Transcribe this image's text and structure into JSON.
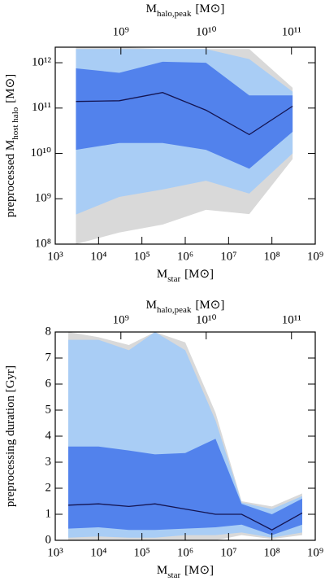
{
  "chart_data": [
    {
      "type": "band",
      "xlabel": "M",
      "xlabel_sub": "star",
      "xlabel_unit": "[M⊙]",
      "x2label": "M",
      "x2label_sub": "halo,peak",
      "x2label_unit": "[M⊙]",
      "ylabel": "preprocessed M",
      "ylabel_sub": "host halo",
      "ylabel_unit": "[M⊙]",
      "xscale": "log",
      "yscale": "log",
      "xlim": [
        1000,
        1000000000
      ],
      "xticks": [
        {
          "value": 1000,
          "label": "10³"
        },
        {
          "value": 10000,
          "label": "10⁴"
        },
        {
          "value": 100000,
          "label": "10⁵"
        },
        {
          "value": 1000000,
          "label": "10⁶"
        },
        {
          "value": 10000000,
          "label": "10⁷"
        },
        {
          "value": 100000000,
          "label": "10⁸"
        },
        {
          "value": 1000000000,
          "label": "10⁹"
        }
      ],
      "x2lim": [
        170000000,
        190000000000
      ],
      "x2ticks": [
        {
          "value": 1000000000,
          "label": "10⁹"
        },
        {
          "value": 10000000000,
          "label": "10¹⁰"
        },
        {
          "value": 100000000000,
          "label": "10¹¹"
        }
      ],
      "ylim": [
        100000000,
        2200000000000
      ],
      "yticks": [
        {
          "value": 100000000,
          "label": "10⁸"
        },
        {
          "value": 1000000000,
          "label": "10⁹"
        },
        {
          "value": 10000000000,
          "label": "10¹⁰"
        },
        {
          "value": 100000000000,
          "label": "10¹¹"
        },
        {
          "value": 1000000000000,
          "label": "10¹²"
        }
      ],
      "x": [
        3000,
        30000,
        300000,
        3000000,
        30000000,
        300000000
      ],
      "bands": [
        {
          "color": "#d9d9d9",
          "upper": [
            2200000000000,
            2200000000000,
            2000000000000,
            2000000000000,
            2000000000000,
            280000000000
          ],
          "lower": [
            100000000,
            180000000,
            270000000,
            570000000,
            460000000,
            7500000000
          ]
        },
        {
          "color": "#a9cdf5",
          "upper": [
            2000000000000,
            2000000000000,
            2000000000000,
            2000000000000,
            1200000000000,
            230000000000
          ],
          "lower": [
            450000000,
            1100000000,
            1600000000,
            2500000000,
            1300000000,
            10000000000
          ]
        },
        {
          "color": "#5282ec",
          "upper": [
            750000000000,
            600000000000,
            1050000000000,
            1000000000000,
            190000000000,
            190000000000
          ],
          "lower": [
            12000000000,
            17000000000,
            17000000000,
            12000000000,
            4600000000,
            30000000000
          ]
        }
      ],
      "median": {
        "color": "#141450",
        "values": [
          140000000000,
          145000000000,
          220000000000,
          90000000000,
          26000000000,
          110000000000
        ]
      }
    },
    {
      "type": "band",
      "xlabel": "M",
      "xlabel_sub": "star",
      "xlabel_unit": "[M⊙]",
      "x2label": "M",
      "x2label_sub": "halo,peak",
      "x2label_unit": "[M⊙]",
      "ylabel": "preprocessing duration [Gyr]",
      "xscale": "log",
      "yscale": "linear",
      "xlim": [
        1000,
        1000000000
      ],
      "xticks": [
        {
          "value": 1000,
          "label": "10³"
        },
        {
          "value": 10000,
          "label": "10⁴"
        },
        {
          "value": 100000,
          "label": "10⁵"
        },
        {
          "value": 1000000,
          "label": "10⁶"
        },
        {
          "value": 10000000,
          "label": "10⁷"
        },
        {
          "value": 100000000,
          "label": "10⁸"
        },
        {
          "value": 1000000000,
          "label": "10⁹"
        }
      ],
      "x2lim": [
        170000000,
        190000000000
      ],
      "x2ticks": [
        {
          "value": 1000000000,
          "label": "10⁹"
        },
        {
          "value": 10000000000,
          "label": "10¹⁰"
        },
        {
          "value": 100000000000,
          "label": "10¹¹"
        }
      ],
      "ylim": [
        0,
        8
      ],
      "yticks": [
        0,
        1,
        2,
        3,
        4,
        5,
        6,
        7,
        8
      ],
      "x": [
        2000,
        10000,
        50000,
        200000,
        1000000,
        5000000,
        20000000,
        100000000,
        500000000
      ],
      "bands": [
        {
          "color": "#d9d9d9",
          "upper": [
            8,
            7.8,
            7.5,
            8,
            7.6,
            4.9,
            1.5,
            1.3,
            1.8
          ],
          "lower": [
            0,
            0,
            0,
            0,
            0,
            0,
            0.2,
            0.05,
            0.2
          ]
        },
        {
          "color": "#a9cdf5",
          "upper": [
            7.7,
            7.7,
            7.3,
            8,
            7.3,
            4.6,
            1.45,
            1.2,
            1.7
          ],
          "lower": [
            0.1,
            0.15,
            0.1,
            0.1,
            0.2,
            0.2,
            0.3,
            0.1,
            0.3
          ]
        },
        {
          "color": "#5282ec",
          "upper": [
            3.6,
            3.6,
            3.45,
            3.3,
            3.35,
            3.9,
            1.4,
            1,
            1.6
          ],
          "lower": [
            0.45,
            0.5,
            0.4,
            0.4,
            0.45,
            0.5,
            0.6,
            0.2,
            0.6
          ]
        }
      ],
      "median": {
        "color": "#141450",
        "values": [
          1.35,
          1.4,
          1.3,
          1.4,
          1.2,
          1,
          1,
          0.4,
          1.05
        ]
      }
    }
  ]
}
